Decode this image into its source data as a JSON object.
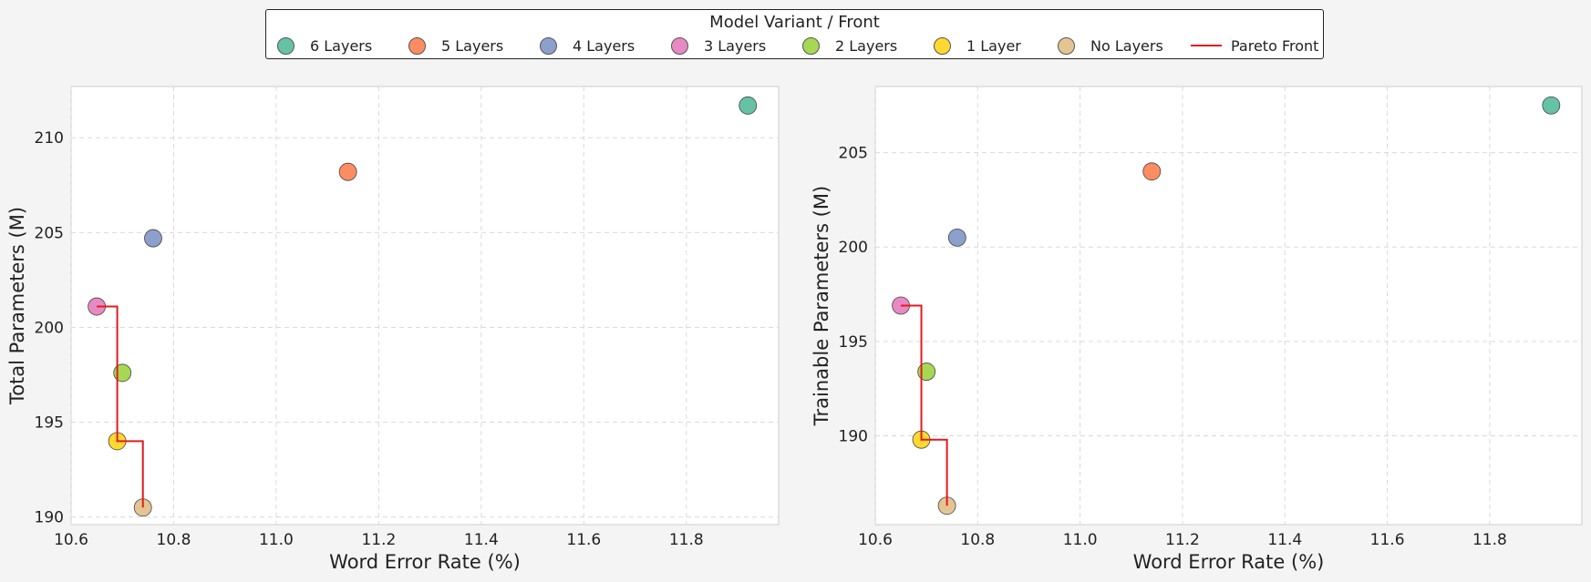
{
  "legend": {
    "title": "Model Variant / Front",
    "items": [
      {
        "label": "6 Layers",
        "color": "#66c2a5",
        "kind": "marker"
      },
      {
        "label": "5 Layers",
        "color": "#fc8d62",
        "kind": "marker"
      },
      {
        "label": "4 Layers",
        "color": "#8da0cb",
        "kind": "marker"
      },
      {
        "label": "3 Layers",
        "color": "#e78ac3",
        "kind": "marker"
      },
      {
        "label": "2 Layers",
        "color": "#a6d854",
        "kind": "marker"
      },
      {
        "label": "1 Layer",
        "color": "#ffd92f",
        "kind": "marker"
      },
      {
        "label": "No Layers",
        "color": "#e5c494",
        "kind": "marker"
      },
      {
        "label": "Pareto Front",
        "color": "#e41a1c",
        "kind": "line"
      }
    ]
  },
  "chart_data": [
    {
      "type": "scatter",
      "xlabel": "Word Error Rate (%)",
      "ylabel": "Total Parameters (M)",
      "xlim": [
        10.6,
        11.98
      ],
      "ylim": [
        189.6,
        212.7
      ],
      "xticks": [
        "10.6",
        "10.8",
        "11.0",
        "11.2",
        "11.4",
        "11.6",
        "11.8"
      ],
      "yticks": [
        "190",
        "195",
        "200",
        "205",
        "210"
      ],
      "grid": true,
      "points": [
        {
          "label": "6 Layers",
          "x": 11.92,
          "y": 211.7
        },
        {
          "label": "5 Layers",
          "x": 11.14,
          "y": 208.2
        },
        {
          "label": "4 Layers",
          "x": 10.76,
          "y": 204.7
        },
        {
          "label": "3 Layers",
          "x": 10.65,
          "y": 201.1
        },
        {
          "label": "2 Layers",
          "x": 10.7,
          "y": 197.6
        },
        {
          "label": "1 Layer",
          "x": 10.69,
          "y": 194.0
        },
        {
          "label": "No Layers",
          "x": 10.74,
          "y": 190.5
        }
      ],
      "pareto_front": [
        {
          "x": 10.65,
          "y": 201.1
        },
        {
          "x": 10.69,
          "y": 194.0
        },
        {
          "x": 10.74,
          "y": 190.5
        }
      ]
    },
    {
      "type": "scatter",
      "xlabel": "Word Error Rate (%)",
      "ylabel": "Trainable Parameters (M)",
      "xlim": [
        10.6,
        11.98
      ],
      "ylim": [
        185.3,
        208.5
      ],
      "xticks": [
        "10.6",
        "10.8",
        "11.0",
        "11.2",
        "11.4",
        "11.6",
        "11.8"
      ],
      "yticks": [
        "190",
        "195",
        "200",
        "205"
      ],
      "grid": true,
      "points": [
        {
          "label": "6 Layers",
          "x": 11.92,
          "y": 207.5
        },
        {
          "label": "5 Layers",
          "x": 11.14,
          "y": 204.0
        },
        {
          "label": "4 Layers",
          "x": 10.76,
          "y": 200.5
        },
        {
          "label": "3 Layers",
          "x": 10.65,
          "y": 196.9
        },
        {
          "label": "2 Layers",
          "x": 10.7,
          "y": 193.4
        },
        {
          "label": "1 Layer",
          "x": 10.69,
          "y": 189.8
        },
        {
          "label": "No Layers",
          "x": 10.74,
          "y": 186.3
        }
      ],
      "pareto_front": [
        {
          "x": 10.65,
          "y": 196.9
        },
        {
          "x": 10.69,
          "y": 189.8
        },
        {
          "x": 10.74,
          "y": 186.3
        }
      ]
    }
  ]
}
